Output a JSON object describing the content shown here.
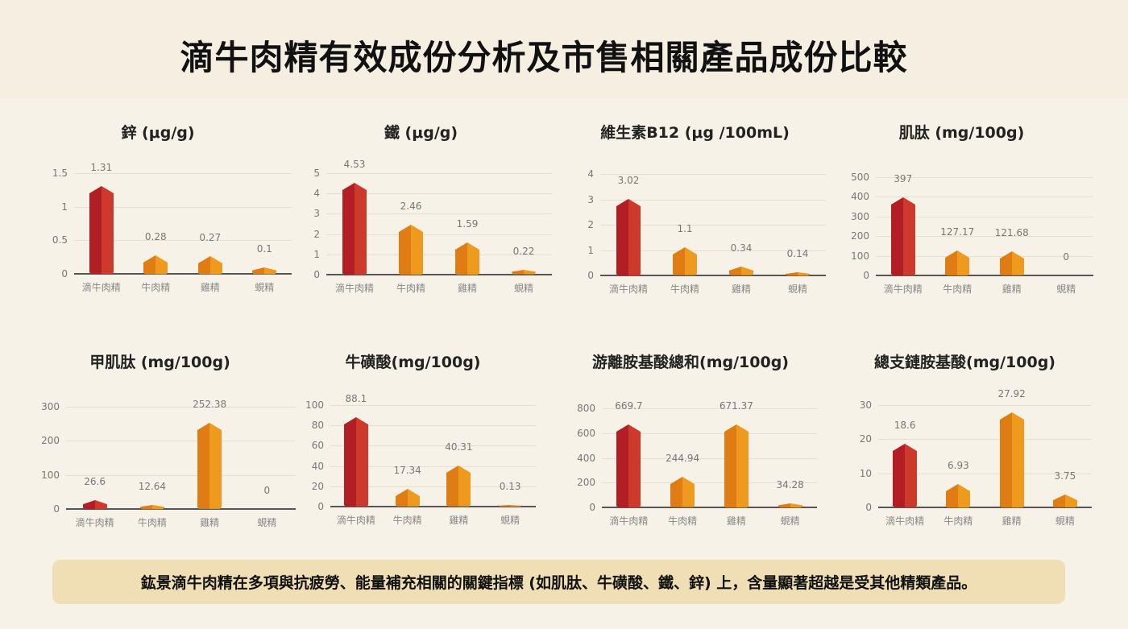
{
  "header": {
    "title": "滴牛肉精有效成份分析及市售相關產品成份比較"
  },
  "colors": {
    "highlight_dark": "#b21e24",
    "highlight_light": "#cd3a2c",
    "other_dark": "#df7c14",
    "other_light": "#ee9a1e",
    "background": "#f7f2e7",
    "note_bg": "#f0dfb4"
  },
  "categories": [
    "滴牛肉精",
    "牛肉精",
    "雞精",
    "蜆精"
  ],
  "chart_data": [
    {
      "type": "bar",
      "title": "鋅 (μg/g)",
      "categories": [
        "滴牛肉精",
        "牛肉精",
        "雞精",
        "蜆精"
      ],
      "values": [
        1.31,
        0.28,
        0.27,
        0.1
      ],
      "labels": [
        "1.31",
        "0.28",
        "0.27",
        "0.1"
      ],
      "yticks": [
        "0",
        "0.5",
        "1",
        "1.5"
      ],
      "ylim": [
        0,
        1.5
      ],
      "grid": true
    },
    {
      "type": "bar",
      "title": "鐵 (μg/g)",
      "categories": [
        "滴牛肉精",
        "牛肉精",
        "雞精",
        "蜆精"
      ],
      "values": [
        4.53,
        2.46,
        1.59,
        0.22
      ],
      "labels": [
        "4.53",
        "2.46",
        "1.59",
        "0.22"
      ],
      "yticks": [
        "0",
        "1",
        "2",
        "3",
        "4",
        "5"
      ],
      "ylim": [
        0,
        5
      ],
      "grid": true
    },
    {
      "type": "bar",
      "title": "維生素B12 (μg /100mL)",
      "categories": [
        "滴牛肉精",
        "牛肉精",
        "雞精",
        "蜆精"
      ],
      "values": [
        3.02,
        1.1,
        0.34,
        0.14
      ],
      "labels": [
        "3.02",
        "1.1",
        "0.34",
        "0.14"
      ],
      "yticks": [
        "0",
        "1",
        "2",
        "3",
        "4"
      ],
      "ylim": [
        0,
        4
      ],
      "grid": true
    },
    {
      "type": "bar",
      "title": "肌肽 (mg/100g)",
      "categories": [
        "滴牛肉精",
        "牛肉精",
        "雞精",
        "蜆精"
      ],
      "values": [
        397,
        127.17,
        121.68,
        0
      ],
      "labels": [
        "397",
        "127.17",
        "121.68",
        "0"
      ],
      "yticks": [
        "0",
        "100",
        "200",
        "300",
        "400",
        "500"
      ],
      "ylim": [
        0,
        500
      ],
      "grid": true
    },
    {
      "type": "bar",
      "title": "甲肌肽 (mg/100g)",
      "categories": [
        "滴牛肉精",
        "牛肉精",
        "雞精",
        "蜆精"
      ],
      "values": [
        26.6,
        12.64,
        252.38,
        0
      ],
      "labels": [
        "26.6",
        "12.64",
        "252.38",
        "0"
      ],
      "yticks": [
        "0",
        "100",
        "200",
        "300"
      ],
      "ylim": [
        0,
        300
      ],
      "grid": true
    },
    {
      "type": "bar",
      "title": "牛磺酸(mg/100g)",
      "categories": [
        "滴牛肉精",
        "牛肉精",
        "雞精",
        "蜆精"
      ],
      "values": [
        88.1,
        17.34,
        40.31,
        0.13
      ],
      "labels": [
        "88.1",
        "17.34",
        "40.31",
        "0.13"
      ],
      "yticks": [
        "0",
        "20",
        "40",
        "60",
        "80",
        "100"
      ],
      "ylim": [
        0,
        100
      ],
      "grid": true
    },
    {
      "type": "bar",
      "title": "游離胺基酸總和(mg/100g)",
      "categories": [
        "滴牛肉精",
        "牛肉精",
        "雞精",
        "蜆精"
      ],
      "values": [
        669.7,
        244.94,
        671.37,
        34.28
      ],
      "labels": [
        "669.7",
        "244.94",
        "671.37",
        "34.28"
      ],
      "yticks": [
        "0",
        "200",
        "400",
        "600",
        "800"
      ],
      "ylim": [
        0,
        800
      ],
      "grid": true
    },
    {
      "type": "bar",
      "title": "總支鏈胺基酸(mg/100g)",
      "categories": [
        "滴牛肉精",
        "牛肉精",
        "雞精",
        "蜆精"
      ],
      "values": [
        18.6,
        6.93,
        27.92,
        3.75
      ],
      "labels": [
        "18.6",
        "6.93",
        "27.92",
        "3.75"
      ],
      "yticks": [
        "0",
        "10",
        "20",
        "30"
      ],
      "ylim": [
        0,
        30
      ],
      "grid": true
    }
  ],
  "note": {
    "text": "鈜景滴牛肉精在多項與抗疲勞、能量補充相關的關鍵指標 (如肌肽、牛磺酸、鐵、鋅) 上，含量顯著超越是受其他精類產品。"
  }
}
